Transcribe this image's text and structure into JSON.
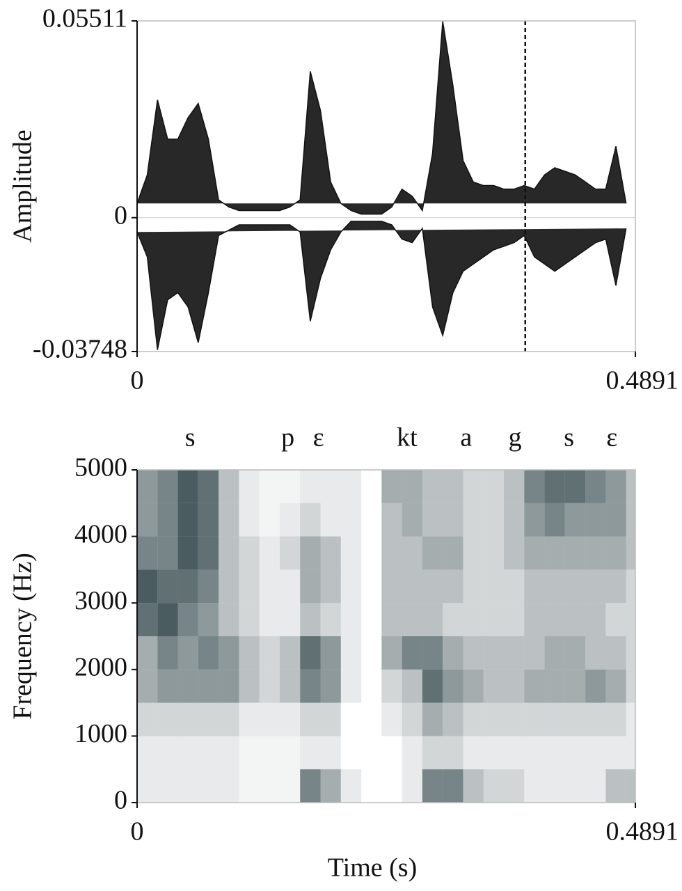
{
  "chart_data": [
    {
      "type": "line",
      "ylabel": "Amplitude",
      "x": [
        0,
        0.01,
        0.02,
        0.03,
        0.04,
        0.05,
        0.06,
        0.07,
        0.08,
        0.09,
        0.1,
        0.11,
        0.12,
        0.13,
        0.14,
        0.15,
        0.16,
        0.17,
        0.18,
        0.19,
        0.2,
        0.21,
        0.22,
        0.23,
        0.24,
        0.25,
        0.26,
        0.27,
        0.28,
        0.29,
        0.3,
        0.31,
        0.32,
        0.33,
        0.34,
        0.35,
        0.36,
        0.37,
        0.38,
        0.39,
        0.4,
        0.41,
        0.42,
        0.43,
        0.44,
        0.45,
        0.46,
        0.47,
        0.48
      ],
      "series": [
        {
          "color": "#111111",
          "values": [
            0.004,
            0.012,
            0.033,
            0.022,
            0.022,
            0.028,
            0.032,
            0.022,
            0.005,
            0.003,
            0.002,
            0.002,
            0.002,
            0.002,
            0.002,
            0.003,
            0.005,
            0.041,
            0.03,
            0.01,
            0.004,
            0.002,
            0.001,
            0.001,
            0.001,
            0.003,
            0.008,
            0.006,
            0.002,
            0.018,
            0.055,
            0.037,
            0.016,
            0.01,
            0.009,
            0.009,
            0.008,
            0.008,
            0.009,
            0.008,
            0.012,
            0.014,
            0.013,
            0.012,
            0.01,
            0.008,
            0.008,
            0.02,
            0.004
          ]
        },
        {
          "color": "#111111",
          "values": [
            -0.004,
            -0.011,
            -0.037,
            -0.023,
            -0.021,
            -0.025,
            -0.035,
            -0.021,
            -0.005,
            -0.0035,
            -0.002,
            -0.002,
            -0.002,
            -0.002,
            -0.002,
            -0.002,
            -0.004,
            -0.029,
            -0.017,
            -0.009,
            -0.004,
            -0.001,
            -0.001,
            -0.001,
            -0.001,
            -0.002,
            -0.006,
            -0.007,
            -0.003,
            -0.025,
            -0.033,
            -0.021,
            -0.015,
            -0.013,
            -0.011,
            -0.009,
            -0.008,
            -0.007,
            -0.005,
            -0.011,
            -0.013,
            -0.015,
            -0.013,
            -0.011,
            -0.009,
            -0.007,
            -0.006,
            -0.019,
            -0.003
          ]
        }
      ],
      "xlim": [
        0,
        0.4891
      ],
      "ylim": [
        -0.03748,
        0.05511
      ],
      "xticks": [
        0,
        0.4891
      ],
      "yticks": [
        -0.03748,
        0,
        0.05511
      ],
      "vlines": [
        {
          "x": 0.381
        }
      ]
    },
    {
      "type": "heatmap",
      "xlabel": "Time (s)",
      "ylabel": "Frequency (Hz)",
      "color": "#1d3338",
      "x_bins": [
        0,
        0.02,
        0.04,
        0.06,
        0.08,
        0.1,
        0.12,
        0.14,
        0.16,
        0.18,
        0.2,
        0.22,
        0.24,
        0.26,
        0.28,
        0.3,
        0.32,
        0.34,
        0.36,
        0.38,
        0.4,
        0.42,
        0.44,
        0.46,
        0.48,
        0.4891
      ],
      "y_bins": [
        0,
        500,
        1000,
        1500,
        2000,
        2500,
        3000,
        3500,
        4000,
        4500,
        5000
      ],
      "z": [
        [
          0.1,
          0.1,
          0.2,
          0.4,
          0.4,
          0.7,
          0.8,
          0.6,
          0.5,
          0.5
        ],
        [
          0.1,
          0.1,
          0.2,
          0.5,
          0.6,
          0.8,
          0.7,
          0.6,
          0.6,
          0.6
        ],
        [
          0.1,
          0.1,
          0.2,
          0.5,
          0.5,
          0.6,
          0.7,
          0.8,
          0.8,
          0.8
        ],
        [
          0.1,
          0.1,
          0.2,
          0.5,
          0.6,
          0.5,
          0.6,
          0.7,
          0.7,
          0.7
        ],
        [
          0.1,
          0.1,
          0.2,
          0.5,
          0.5,
          0.3,
          0.3,
          0.3,
          0.3,
          0.3
        ],
        [
          0.05,
          0.05,
          0.1,
          0.3,
          0.3,
          0.2,
          0.2,
          0.2,
          0.1,
          0.1
        ],
        [
          0.05,
          0.05,
          0.1,
          0.2,
          0.2,
          0.1,
          0.1,
          0.1,
          0.05,
          0.05
        ],
        [
          0.05,
          0.05,
          0.1,
          0.3,
          0.3,
          0.1,
          0.1,
          0.2,
          0.1,
          0.05
        ],
        [
          0.6,
          0.1,
          0.2,
          0.6,
          0.7,
          0.3,
          0.4,
          0.4,
          0.2,
          0.1
        ],
        [
          0.4,
          0.1,
          0.2,
          0.5,
          0.5,
          0.2,
          0.3,
          0.3,
          0.1,
          0.1
        ],
        [
          0.1,
          0,
          0,
          0.1,
          0.1,
          0.1,
          0.1,
          0.1,
          0.1,
          0.1
        ],
        [
          0,
          0,
          0,
          0,
          0,
          0,
          0,
          0,
          0,
          0
        ],
        [
          0,
          0,
          0.1,
          0.2,
          0.4,
          0.3,
          0.3,
          0.3,
          0.3,
          0.4
        ],
        [
          0.1,
          0.1,
          0.2,
          0.3,
          0.6,
          0.3,
          0.3,
          0.3,
          0.4,
          0.4
        ],
        [
          0.6,
          0.2,
          0.4,
          0.7,
          0.6,
          0.3,
          0.3,
          0.4,
          0.3,
          0.3
        ],
        [
          0.6,
          0.2,
          0.3,
          0.5,
          0.4,
          0.2,
          0.3,
          0.4,
          0.3,
          0.3
        ],
        [
          0.3,
          0.1,
          0.2,
          0.4,
          0.3,
          0.2,
          0.2,
          0.2,
          0.2,
          0.2
        ],
        [
          0.2,
          0.1,
          0.2,
          0.3,
          0.3,
          0.2,
          0.2,
          0.2,
          0.2,
          0.2
        ],
        [
          0.2,
          0.1,
          0.2,
          0.3,
          0.3,
          0.2,
          0.2,
          0.3,
          0.3,
          0.3
        ],
        [
          0.1,
          0.1,
          0.2,
          0.4,
          0.3,
          0.3,
          0.3,
          0.4,
          0.5,
          0.6
        ],
        [
          0.1,
          0.1,
          0.2,
          0.4,
          0.4,
          0.3,
          0.3,
          0.4,
          0.6,
          0.7
        ],
        [
          0.1,
          0.1,
          0.2,
          0.4,
          0.4,
          0.3,
          0.3,
          0.4,
          0.5,
          0.7
        ],
        [
          0.1,
          0.1,
          0.2,
          0.5,
          0.3,
          0.3,
          0.3,
          0.4,
          0.5,
          0.6
        ],
        [
          0.3,
          0.1,
          0.2,
          0.4,
          0.3,
          0.2,
          0.3,
          0.4,
          0.5,
          0.5
        ],
        [
          0.3,
          0.1,
          0.1,
          0.2,
          0.2,
          0.2,
          0.2,
          0.3,
          0.3,
          0.3
        ]
      ],
      "xlim": [
        0,
        0.4891
      ],
      "ylim": [
        0,
        5000
      ],
      "xticks": [
        0,
        0.4891
      ],
      "yticks": [
        0,
        1000,
        2000,
        3000,
        4000,
        5000
      ],
      "annotations": [
        {
          "text": "s",
          "x": 0.052
        },
        {
          "text": "p",
          "x": 0.148
        },
        {
          "text": "ε",
          "x": 0.178
        },
        {
          "text": "kt",
          "x": 0.265
        },
        {
          "text": "a",
          "x": 0.323
        },
        {
          "text": "g",
          "x": 0.371
        },
        {
          "text": "s",
          "x": 0.424
        },
        {
          "text": "ε",
          "x": 0.466
        }
      ]
    }
  ]
}
